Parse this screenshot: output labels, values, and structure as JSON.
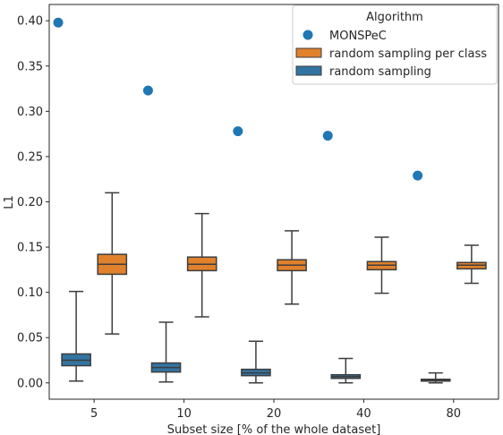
{
  "chart_data": {
    "type": "box",
    "title": "",
    "xlabel": "Subset size [% of the whole dataset]",
    "ylabel": "L1",
    "ylim": [
      -0.018,
      0.418
    ],
    "yticks": [
      0.0,
      0.05,
      0.1,
      0.15,
      0.2,
      0.25,
      0.3,
      0.35,
      0.4
    ],
    "ytick_labels": [
      "0.00",
      "0.05",
      "0.10",
      "0.15",
      "0.20",
      "0.25",
      "0.30",
      "0.35",
      "0.40"
    ],
    "categories": [
      "5",
      "10",
      "20",
      "40",
      "80"
    ],
    "legend": {
      "title": "Algorithm",
      "position": "top-right",
      "entries": [
        "MONSPeC",
        "random sampling per class",
        "random sampling"
      ]
    },
    "colors": {
      "MONSPeC": "#1f77b4",
      "random sampling per class": "#e1812c",
      "random sampling": "#3274a1",
      "box_edge": "#3d3d3d"
    },
    "series": [
      {
        "name": "MONSPeC",
        "kind": "point",
        "values": [
          0.398,
          0.323,
          0.278,
          0.273,
          0.229
        ]
      },
      {
        "name": "random sampling per class",
        "kind": "box",
        "boxes": [
          {
            "whislo": 0.054,
            "q1": 0.12,
            "med": 0.131,
            "q3": 0.142,
            "whishi": 0.21
          },
          {
            "whislo": 0.073,
            "q1": 0.124,
            "med": 0.131,
            "q3": 0.139,
            "whishi": 0.187
          },
          {
            "whislo": 0.087,
            "q1": 0.124,
            "med": 0.13,
            "q3": 0.136,
            "whishi": 0.168
          },
          {
            "whislo": 0.099,
            "q1": 0.125,
            "med": 0.13,
            "q3": 0.134,
            "whishi": 0.161
          },
          {
            "whislo": 0.11,
            "q1": 0.126,
            "med": 0.13,
            "q3": 0.133,
            "whishi": 0.152
          }
        ]
      },
      {
        "name": "random sampling",
        "kind": "box",
        "boxes": [
          {
            "whislo": 0.002,
            "q1": 0.019,
            "med": 0.025,
            "q3": 0.032,
            "whishi": 0.101
          },
          {
            "whislo": 0.001,
            "q1": 0.012,
            "med": 0.017,
            "q3": 0.022,
            "whishi": 0.067
          },
          {
            "whislo": 0.0,
            "q1": 0.008,
            "med": 0.011,
            "q3": 0.015,
            "whishi": 0.046
          },
          {
            "whislo": 0.0,
            "q1": 0.005,
            "med": 0.007,
            "q3": 0.009,
            "whishi": 0.027
          },
          {
            "whislo": 0.0,
            "q1": 0.002,
            "med": 0.003,
            "q3": 0.004,
            "whishi": 0.011
          }
        ]
      }
    ]
  }
}
